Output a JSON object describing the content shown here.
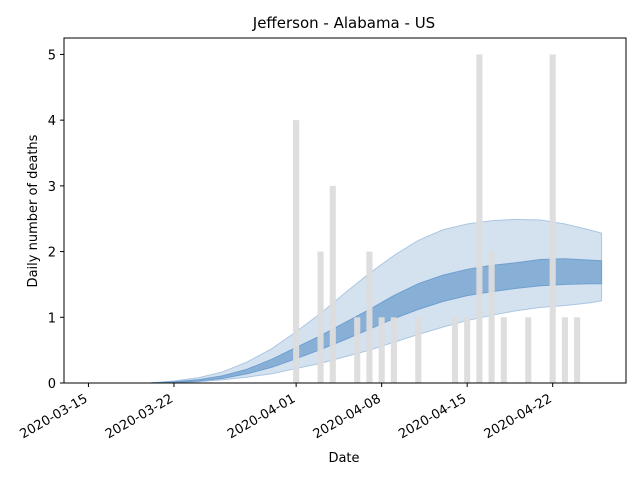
{
  "chart_data": {
    "type": "bar",
    "title": "Jefferson - Alabama - US",
    "xlabel": "Date",
    "ylabel": "Daily number of deaths",
    "xlim": [
      "2020-03-13",
      "2020-04-28"
    ],
    "ylim": [
      0,
      5.25
    ],
    "x_ticks": [
      "2020-03-15",
      "2020-03-22",
      "2020-04-01",
      "2020-04-08",
      "2020-04-15",
      "2020-04-22"
    ],
    "y_ticks": [
      0,
      1,
      2,
      3,
      4,
      5
    ],
    "grid": false,
    "colors": {
      "bar": "#dcdcdc",
      "band_outer": "#aac6e2",
      "band_inner": "#6f9fcf",
      "axes": "#000000"
    },
    "observed_deaths": {
      "x": [
        "2020-04-01",
        "2020-04-03",
        "2020-04-04",
        "2020-04-06",
        "2020-04-07",
        "2020-04-08",
        "2020-04-09",
        "2020-04-11",
        "2020-04-14",
        "2020-04-15",
        "2020-04-16",
        "2020-04-17",
        "2020-04-18",
        "2020-04-20",
        "2020-04-22",
        "2020-04-23",
        "2020-04-24"
      ],
      "values": [
        4,
        2,
        3,
        1,
        2,
        1,
        1,
        1,
        1,
        1,
        5,
        2,
        1,
        1,
        5,
        1,
        1
      ]
    },
    "model_dates": [
      "2020-03-20",
      "2020-03-22",
      "2020-03-24",
      "2020-03-26",
      "2020-03-28",
      "2020-03-30",
      "2020-04-01",
      "2020-04-03",
      "2020-04-05",
      "2020-04-07",
      "2020-04-09",
      "2020-04-11",
      "2020-04-13",
      "2020-04-15",
      "2020-04-17",
      "2020-04-19",
      "2020-04-21",
      "2020-04-23",
      "2020-04-25",
      "2020-04-26"
    ],
    "outer_band": {
      "lower": [
        0,
        0.01,
        0.02,
        0.05,
        0.09,
        0.14,
        0.22,
        0.3,
        0.4,
        0.5,
        0.62,
        0.74,
        0.85,
        0.95,
        1.03,
        1.1,
        1.15,
        1.18,
        1.22,
        1.25
      ],
      "upper": [
        0,
        0.03,
        0.08,
        0.17,
        0.32,
        0.52,
        0.78,
        1.06,
        1.37,
        1.67,
        1.94,
        2.17,
        2.33,
        2.42,
        2.47,
        2.49,
        2.48,
        2.42,
        2.33,
        2.28
      ]
    },
    "inner_band": {
      "lower": [
        0,
        0.01,
        0.03,
        0.07,
        0.14,
        0.24,
        0.37,
        0.51,
        0.66,
        0.82,
        0.98,
        1.12,
        1.24,
        1.33,
        1.39,
        1.44,
        1.48,
        1.5,
        1.51,
        1.51
      ],
      "upper": [
        0,
        0.02,
        0.05,
        0.11,
        0.21,
        0.36,
        0.54,
        0.72,
        0.92,
        1.12,
        1.33,
        1.51,
        1.64,
        1.73,
        1.79,
        1.83,
        1.88,
        1.89,
        1.87,
        1.86
      ]
    }
  }
}
